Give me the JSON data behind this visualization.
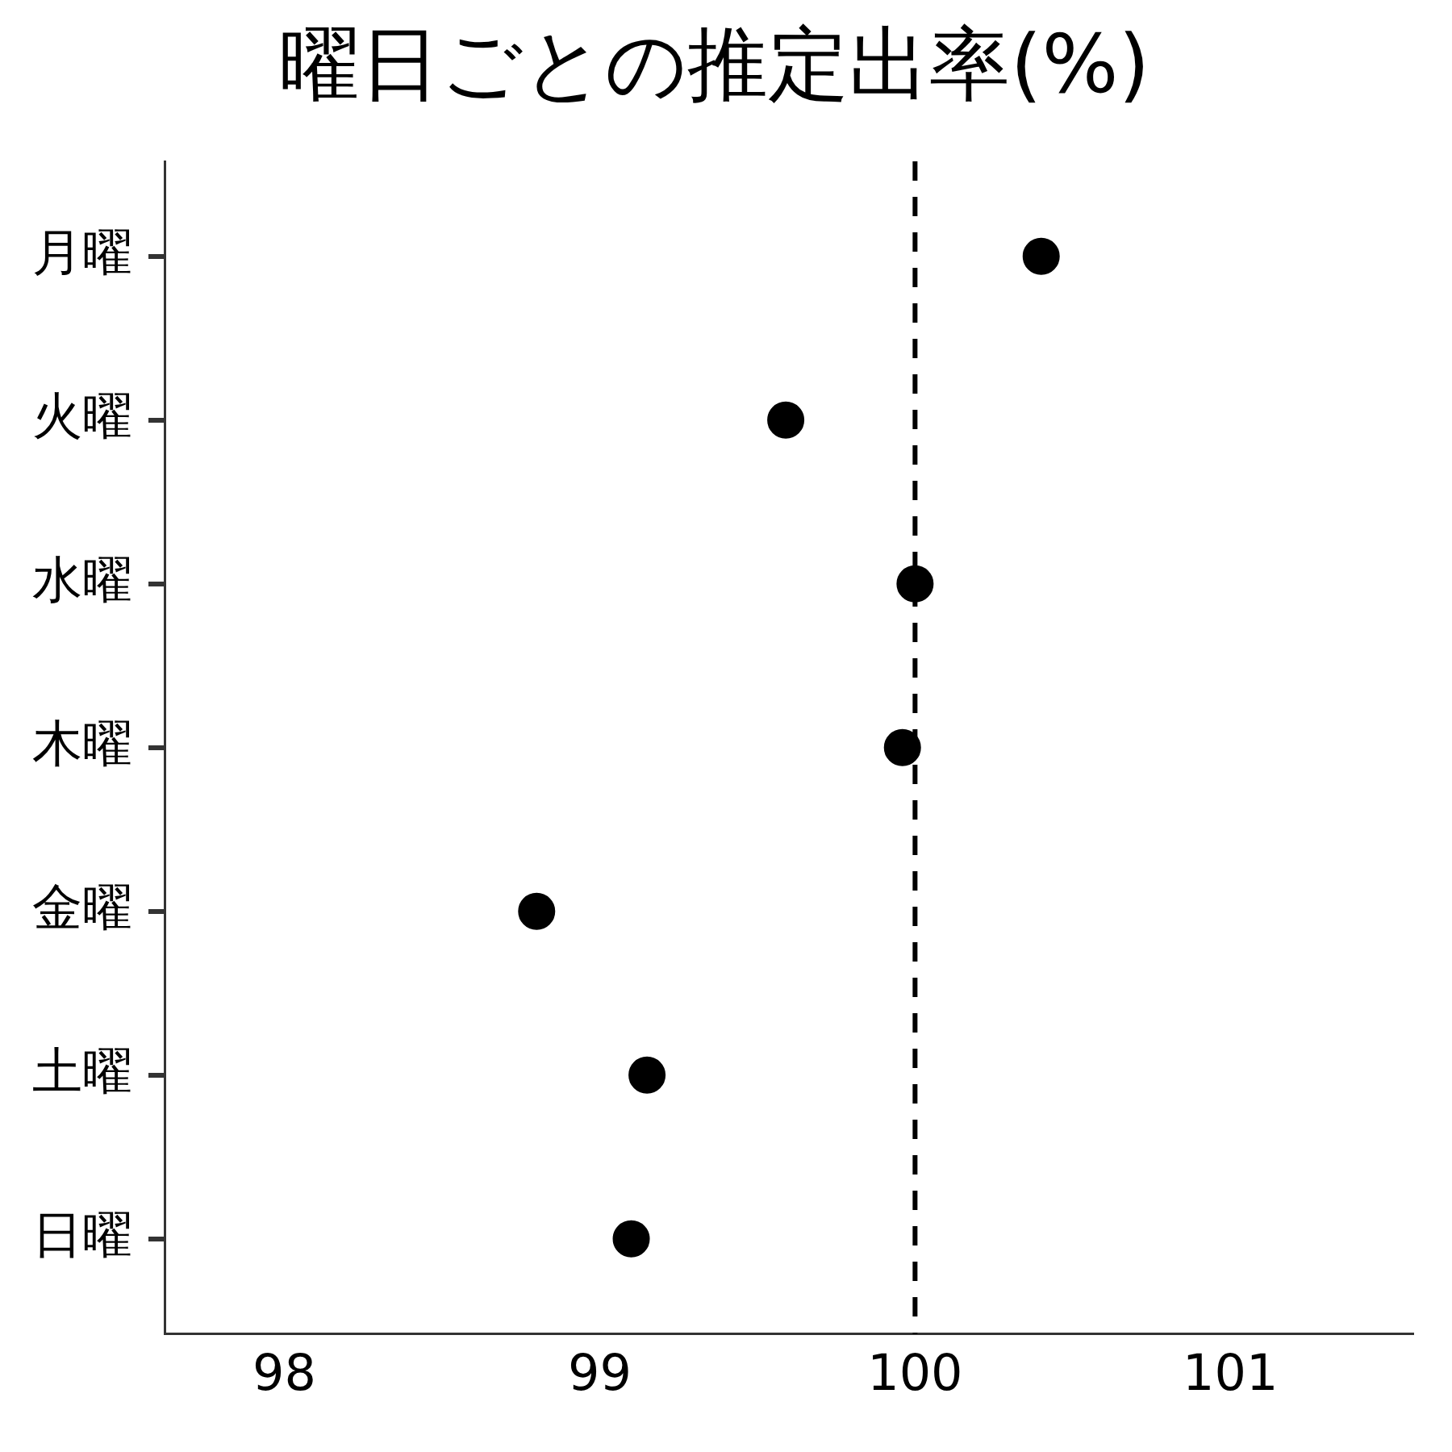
{
  "chart_data": {
    "type": "scatter",
    "orientation": "horizontal",
    "title": "曜日ごとの推定出率(%)",
    "categories": [
      "月曜",
      "火曜",
      "水曜",
      "木曜",
      "金曜",
      "土曜",
      "日曜"
    ],
    "values": [
      100.4,
      99.59,
      100.0,
      99.96,
      98.8,
      99.15,
      99.1
    ],
    "color": "#000000",
    "marker": "circle",
    "xlim": [
      97.62,
      101.58
    ],
    "xticks": [
      98,
      99,
      100,
      101
    ],
    "ref_lines": [
      {
        "axis": "x",
        "value": 100,
        "line_style": "dashed",
        "color": "#000000"
      }
    ],
    "grid": false,
    "legend": false
  }
}
